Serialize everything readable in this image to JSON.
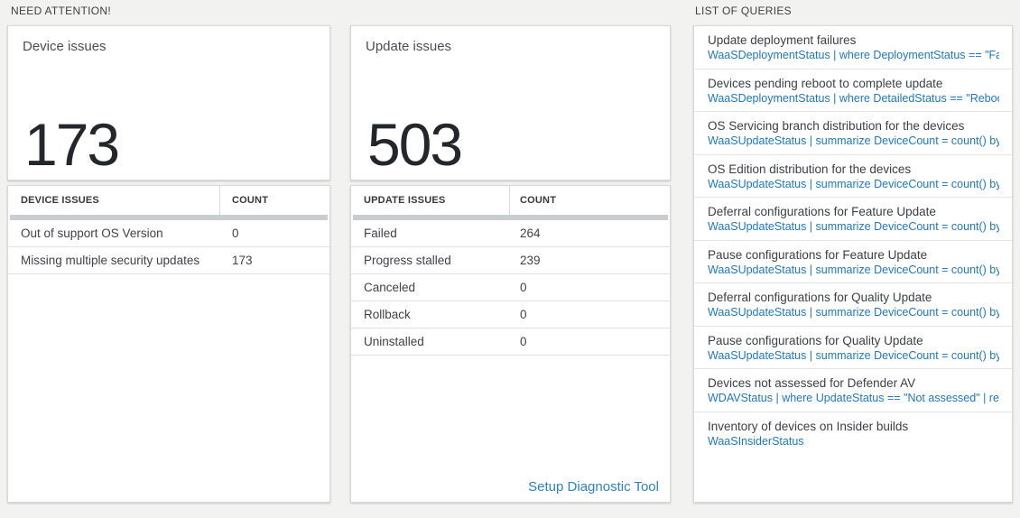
{
  "sections": {
    "need_attention": "NEED ATTENTION!",
    "list_of_queries": "LIST OF QUERIES"
  },
  "device_card": {
    "title": "Device issues",
    "value": "173",
    "table": {
      "headers": [
        "DEVICE ISSUES",
        "COUNT"
      ],
      "rows": [
        {
          "label": "Out of support OS Version",
          "count": "0"
        },
        {
          "label": "Missing multiple security updates",
          "count": "173"
        }
      ]
    }
  },
  "update_card": {
    "title": "Update issues",
    "value": "503",
    "table": {
      "headers": [
        "UPDATE ISSUES",
        "COUNT"
      ],
      "rows": [
        {
          "label": "Failed",
          "count": "264"
        },
        {
          "label": "Progress stalled",
          "count": "239"
        },
        {
          "label": "Canceled",
          "count": "0"
        },
        {
          "label": "Rollback",
          "count": "0"
        },
        {
          "label": "Uninstalled",
          "count": "0"
        }
      ]
    },
    "setup_link": "Setup Diagnostic Tool"
  },
  "queries": [
    {
      "title": "Update deployment failures",
      "query": "WaaSDeploymentStatus | where DeploymentStatus == \"Failed\" |..."
    },
    {
      "title": "Devices pending reboot to complete update",
      "query": "WaaSDeploymentStatus | where DetailedStatus == \"Reboot pend..."
    },
    {
      "title": "OS Servicing branch distribution for the devices",
      "query": "WaaSUpdateStatus | summarize DeviceCount = count() by OSSer..."
    },
    {
      "title": "OS Edition distribution for the devices",
      "query": "WaaSUpdateStatus | summarize DeviceCount = count() by OSEdit..."
    },
    {
      "title": "Deferral configurations for Feature Update",
      "query": "WaaSUpdateStatus | summarize DeviceCount = count() by Featur..."
    },
    {
      "title": "Pause configurations for Feature Update",
      "query": "WaaSUpdateStatus | summarize DeviceCount = count() by Featur..."
    },
    {
      "title": "Deferral configurations for Quality Update",
      "query": "WaaSUpdateStatus | summarize DeviceCount = count() by Qualit..."
    },
    {
      "title": "Pause configurations for Quality Update",
      "query": "WaaSUpdateStatus | summarize DeviceCount = count() by Qualit..."
    },
    {
      "title": "Devices not assessed for Defender AV",
      "query": "WDAVStatus | where UpdateStatus == \"Not assessed\" | render ta..."
    },
    {
      "title": "Inventory of devices on Insider builds",
      "query": "WaaSInsiderStatus"
    }
  ],
  "colors": {
    "query_link_blue": "#1f78bf",
    "setup_link_blue": "#2e81c6",
    "stat_value_dark": "#23272c",
    "page_background": "#f2f2f1"
  }
}
